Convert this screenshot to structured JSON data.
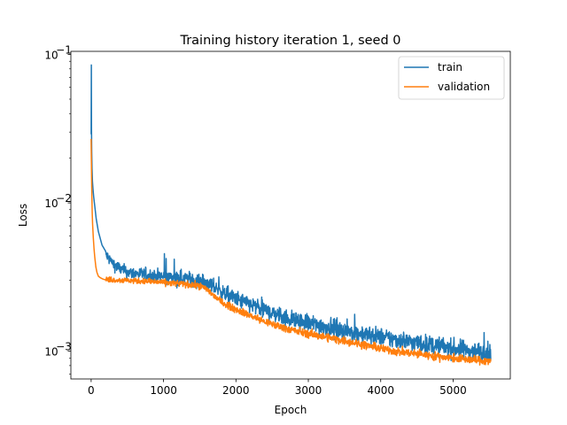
{
  "chart_data": {
    "type": "line",
    "title": "Training history iteration 1, seed 0",
    "xlabel": "Epoch",
    "ylabel": "Loss",
    "xlim": [
      -280,
      5790
    ],
    "ylim": [
      0.00065,
      0.105
    ],
    "yscale": "log",
    "grid": false,
    "legend_position": "top-right",
    "x_ticks": [
      0,
      1000,
      2000,
      3000,
      4000,
      5000
    ],
    "x_tick_labels": [
      "0",
      "1000",
      "2000",
      "3000",
      "4000",
      "5000"
    ],
    "y_ticks": [
      0.001,
      0.01,
      0.1
    ],
    "y_tick_labels": [
      "10",
      "10",
      "10"
    ],
    "y_tick_exponents": [
      "−3",
      "−2",
      "−1"
    ],
    "series": [
      {
        "name": "train",
        "color": "#1f77b4",
        "noise": 0.045,
        "x": [
          0,
          3,
          5,
          8,
          12,
          18,
          25,
          35,
          50,
          70,
          100,
          150,
          200,
          300,
          400,
          500,
          700,
          900,
          1100,
          1300,
          1500,
          1600,
          1700,
          1800,
          1900,
          2000,
          2200,
          2400,
          2600,
          2800,
          3000,
          3300,
          3600,
          3900,
          4200,
          4500,
          4800,
          5100,
          5300,
          5520
        ],
        "y": [
          0.029,
          0.085,
          0.031,
          0.022,
          0.017,
          0.014,
          0.0125,
          0.011,
          0.0095,
          0.0078,
          0.0064,
          0.0052,
          0.0045,
          0.0039,
          0.0036,
          0.0034,
          0.0033,
          0.0032,
          0.00315,
          0.0031,
          0.00298,
          0.0029,
          0.0027,
          0.0025,
          0.00237,
          0.00225,
          0.00206,
          0.00188,
          0.00175,
          0.00163,
          0.00155,
          0.00144,
          0.00135,
          0.00127,
          0.0012,
          0.00114,
          0.00108,
          0.00103,
          0.001,
          0.00098
        ]
      },
      {
        "name": "validation",
        "color": "#ff7f0e",
        "noise": 0.02,
        "x": [
          0,
          3,
          6,
          10,
          15,
          20,
          30,
          40,
          50,
          65,
          80,
          100,
          130,
          160,
          200,
          300,
          500,
          800,
          1100,
          1300,
          1500,
          1600,
          1700,
          1800,
          1900,
          2000,
          2200,
          2400,
          2600,
          2800,
          3000,
          3300,
          3600,
          3900,
          4200,
          4500,
          4800,
          5100,
          5300,
          5520
        ],
        "y": [
          0.027,
          0.02,
          0.015,
          0.011,
          0.0085,
          0.0072,
          0.0058,
          0.0049,
          0.0043,
          0.0037,
          0.0034,
          0.0032,
          0.00312,
          0.00307,
          0.00305,
          0.00303,
          0.003,
          0.00295,
          0.00288,
          0.00283,
          0.00275,
          0.00262,
          0.00235,
          0.00215,
          0.00202,
          0.00192,
          0.00174,
          0.00158,
          0.00147,
          0.00138,
          0.00131,
          0.00123,
          0.00115,
          0.00107,
          0.001,
          0.00096,
          0.00092,
          0.00089,
          0.00087,
          0.00086
        ]
      }
    ]
  }
}
